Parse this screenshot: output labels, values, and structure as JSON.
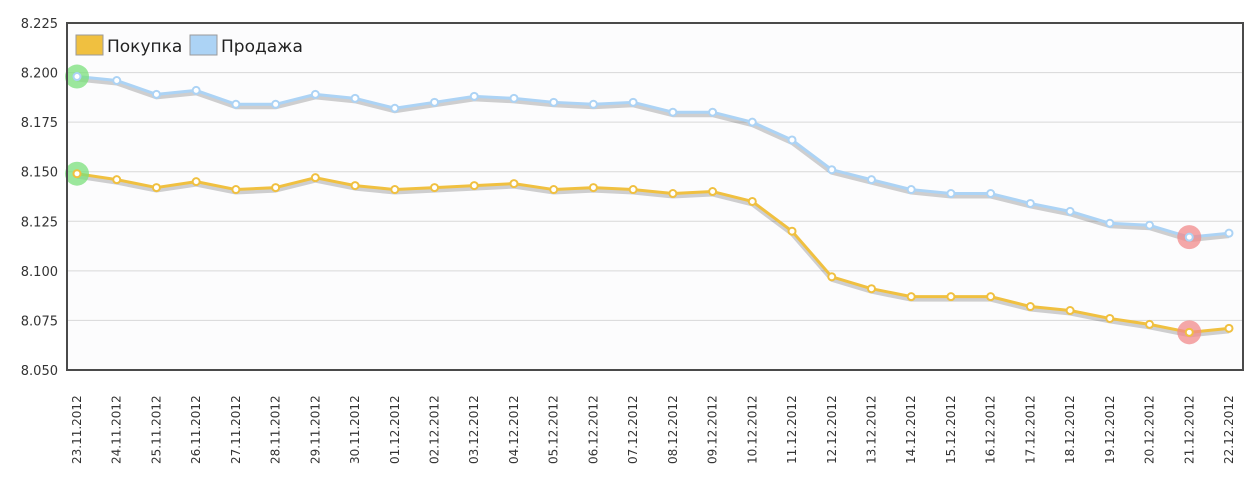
{
  "chart_data": {
    "type": "line",
    "title": "",
    "xlabel": "",
    "ylabel": "",
    "x": [
      "23.11.2012",
      "24.11.2012",
      "25.11.2012",
      "26.11.2012",
      "27.11.2012",
      "28.11.2012",
      "29.11.2012",
      "30.11.2012",
      "01.12.2012",
      "02.12.2012",
      "03.12.2012",
      "04.12.2012",
      "05.12.2012",
      "06.12.2012",
      "07.12.2012",
      "08.12.2012",
      "09.12.2012",
      "10.12.2012",
      "11.12.2012",
      "12.12.2012",
      "13.12.2012",
      "14.12.2012",
      "15.12.2012",
      "16.12.2012",
      "17.12.2012",
      "18.12.2012",
      "19.12.2012",
      "20.12.2012",
      "21.12.2012",
      "22.12.2012"
    ],
    "yticks": [
      "8.050",
      "8.075",
      "8.100",
      "8.125",
      "8.150",
      "8.175",
      "8.200",
      "8.225"
    ],
    "ylim": [
      8.05,
      8.225
    ],
    "grid": true,
    "legend": "top-left",
    "series": [
      {
        "name": "Покупка",
        "color": "#f0c040",
        "values": [
          8.149,
          8.146,
          8.142,
          8.145,
          8.141,
          8.142,
          8.147,
          8.143,
          8.141,
          8.142,
          8.143,
          8.144,
          8.141,
          8.142,
          8.141,
          8.139,
          8.14,
          8.135,
          8.12,
          8.097,
          8.091,
          8.087,
          8.087,
          8.087,
          8.082,
          8.08,
          8.076,
          8.073,
          8.069,
          8.071
        ]
      },
      {
        "name": "Продажа",
        "color": "#acd3f5",
        "values": [
          8.198,
          8.196,
          8.189,
          8.191,
          8.184,
          8.184,
          8.189,
          8.187,
          8.182,
          8.185,
          8.188,
          8.187,
          8.185,
          8.184,
          8.185,
          8.18,
          8.18,
          8.175,
          8.166,
          8.151,
          8.146,
          8.141,
          8.139,
          8.139,
          8.134,
          8.13,
          8.124,
          8.123,
          8.117,
          8.119
        ]
      }
    ],
    "max_marker_color": "#7be07b",
    "min_marker_color": "#f28b8b"
  }
}
